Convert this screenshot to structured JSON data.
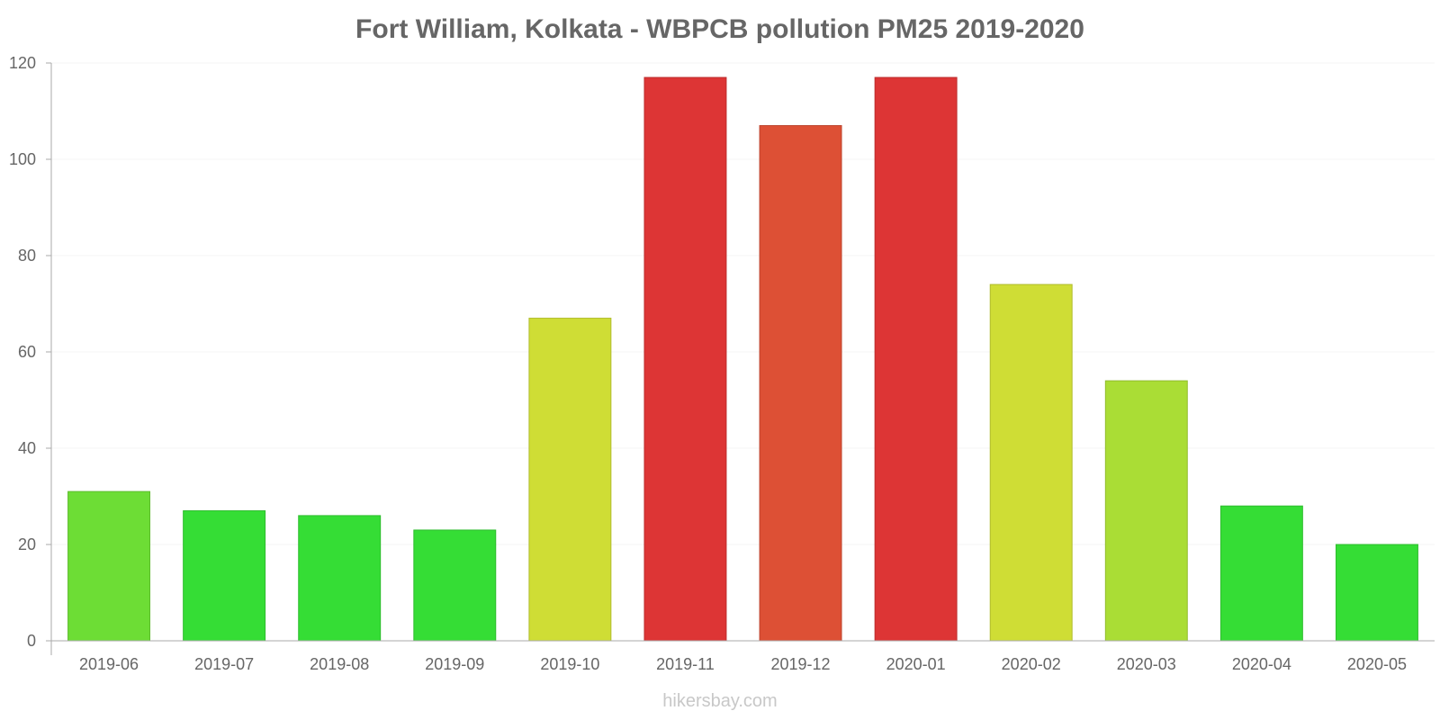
{
  "chart_data": {
    "type": "bar",
    "title": "Fort William, Kolkata - WBPCB pollution PM25 2019-2020",
    "xlabel": "",
    "ylabel": "",
    "ylim": [
      0,
      120
    ],
    "yticks": [
      0,
      20,
      40,
      60,
      80,
      100,
      120
    ],
    "grid": true,
    "categories": [
      "2019-06",
      "2019-07",
      "2019-08",
      "2019-09",
      "2019-10",
      "2019-11",
      "2019-12",
      "2020-01",
      "2020-02",
      "2020-03",
      "2020-04",
      "2020-05"
    ],
    "values": [
      31,
      27,
      26,
      23,
      67,
      117,
      107,
      117,
      74,
      54,
      28,
      20
    ],
    "colors": [
      "#6ddd35",
      "#35dd35",
      "#35dd35",
      "#35dd35",
      "#cfdd35",
      "#dd3535",
      "#dd5035",
      "#dd3535",
      "#cfdd35",
      "#aadd35",
      "#35dd35",
      "#35dd35"
    ]
  },
  "watermark": "hikersbay.com"
}
